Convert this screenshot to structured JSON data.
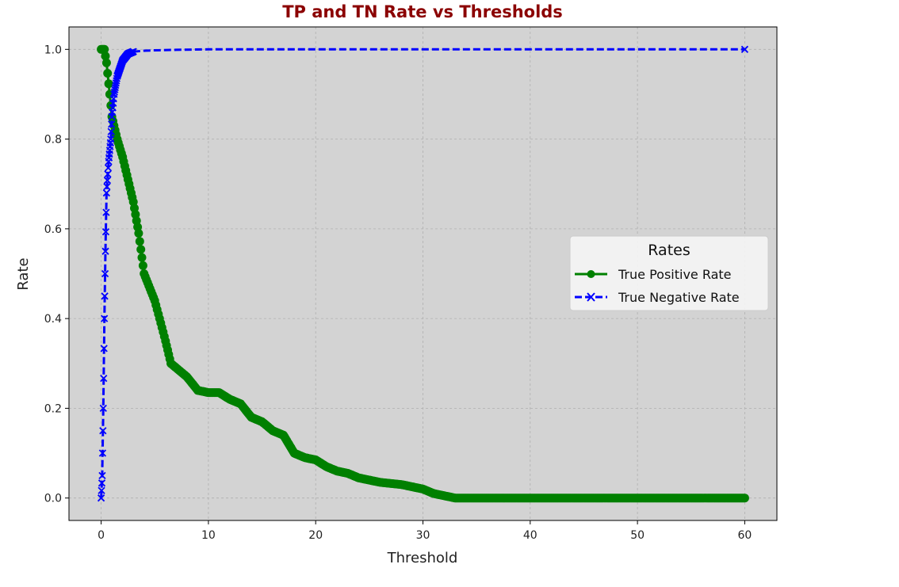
{
  "chart_data": {
    "type": "line",
    "title": "TP and TN Rate vs Thresholds",
    "xlabel": "Threshold",
    "ylabel": "Rate",
    "xlim": [
      -3,
      63
    ],
    "ylim": [
      -0.05,
      1.05
    ],
    "xticks": [
      0,
      10,
      20,
      30,
      40,
      50,
      60
    ],
    "yticks": [
      "0.0",
      "0.2",
      "0.4",
      "0.6",
      "0.8",
      "1.0"
    ],
    "grid": true,
    "legend": {
      "title": "Rates",
      "location": "center-right"
    },
    "colors": {
      "background": "#d3d3d3",
      "title": "#8b0000",
      "tpr": "#008000",
      "tnr": "#0000ff"
    },
    "series": [
      {
        "name": "True Positive Rate",
        "marker": "circle",
        "line_style": "solid",
        "x": [
          0,
          0.3,
          0.5,
          0.8,
          1.0,
          1.5,
          2.0,
          2.5,
          3.0,
          3.5,
          4.0,
          5.0,
          6.0,
          6.5,
          7.0,
          8.0,
          9.0,
          10.0,
          11.0,
          12.0,
          13.0,
          14.0,
          15.0,
          16.0,
          17.0,
          17.5,
          18.0,
          19.0,
          20.0,
          21.0,
          22.0,
          23.0,
          24.0,
          25.0,
          26.0,
          28.0,
          29.0,
          30.0,
          31.0,
          32.0,
          33.0,
          40.0,
          50.0,
          60.0
        ],
        "y": [
          1.0,
          1.0,
          0.97,
          0.9,
          0.85,
          0.8,
          0.76,
          0.71,
          0.66,
          0.59,
          0.5,
          0.44,
          0.35,
          0.3,
          0.29,
          0.27,
          0.24,
          0.235,
          0.235,
          0.22,
          0.21,
          0.18,
          0.17,
          0.15,
          0.14,
          0.12,
          0.1,
          0.09,
          0.085,
          0.07,
          0.06,
          0.055,
          0.045,
          0.04,
          0.035,
          0.03,
          0.025,
          0.02,
          0.01,
          0.005,
          0.0,
          0.0,
          0.0,
          0.0
        ]
      },
      {
        "name": "True Negative Rate",
        "marker": "x",
        "line_style": "dashed",
        "x": [
          0,
          0.1,
          0.2,
          0.3,
          0.4,
          0.5,
          0.7,
          0.9,
          1.0,
          1.2,
          1.5,
          2.0,
          2.5,
          3.0,
          4.0,
          5.0,
          7.0,
          10.0,
          20.0,
          30.0,
          40.0,
          50.0,
          60.0
        ],
        "y": [
          0.0,
          0.05,
          0.2,
          0.4,
          0.55,
          0.68,
          0.75,
          0.8,
          0.85,
          0.9,
          0.94,
          0.975,
          0.99,
          0.995,
          0.997,
          0.998,
          0.999,
          1.0,
          1.0,
          1.0,
          1.0,
          1.0,
          1.0
        ]
      }
    ]
  }
}
